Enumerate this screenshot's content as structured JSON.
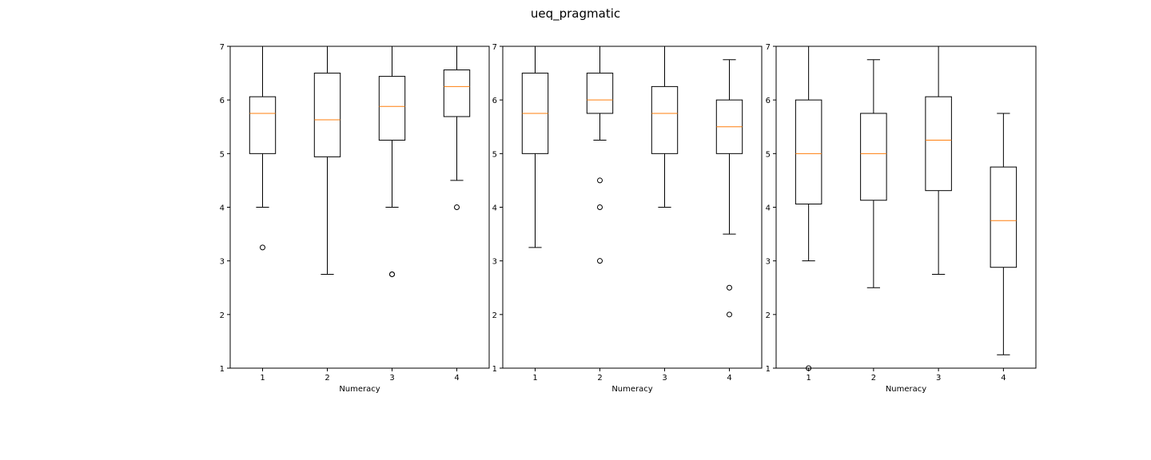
{
  "figure": {
    "title": "ueq_pragmatic"
  },
  "chart_data": [
    {
      "type": "box",
      "xlabel": "Numeracy",
      "ylim": [
        1,
        7
      ],
      "yticks": [
        1,
        2,
        3,
        4,
        5,
        6,
        7
      ],
      "categories": [
        "1",
        "2",
        "3",
        "4"
      ],
      "boxes": [
        {
          "whislo": 4.0,
          "q1": 5.0,
          "med": 5.75,
          "q3": 6.06,
          "whishi": 7.0,
          "fliers": [
            3.25
          ]
        },
        {
          "whislo": 2.75,
          "q1": 4.94,
          "med": 5.63,
          "q3": 6.5,
          "whishi": 7.0,
          "fliers": []
        },
        {
          "whislo": 4.0,
          "q1": 5.25,
          "med": 5.88,
          "q3": 6.44,
          "whishi": 7.0,
          "fliers": [
            2.75,
            2.75
          ]
        },
        {
          "whislo": 4.5,
          "q1": 5.69,
          "med": 6.25,
          "q3": 6.56,
          "whishi": 7.0,
          "fliers": [
            4.0
          ]
        }
      ]
    },
    {
      "type": "box",
      "xlabel": "Numeracy",
      "ylim": [
        1,
        7
      ],
      "yticks": [
        1,
        2,
        3,
        4,
        5,
        6,
        7
      ],
      "categories": [
        "1",
        "2",
        "3",
        "4"
      ],
      "boxes": [
        {
          "whislo": 3.25,
          "q1": 5.0,
          "med": 5.75,
          "q3": 6.5,
          "whishi": 7.0,
          "fliers": []
        },
        {
          "whislo": 5.25,
          "q1": 5.75,
          "med": 6.0,
          "q3": 6.5,
          "whishi": 7.0,
          "fliers": [
            4.5,
            4.0,
            3.0
          ]
        },
        {
          "whislo": 4.0,
          "q1": 5.0,
          "med": 5.75,
          "q3": 6.25,
          "whishi": 7.0,
          "fliers": []
        },
        {
          "whislo": 3.5,
          "q1": 5.0,
          "med": 5.5,
          "q3": 6.0,
          "whishi": 6.75,
          "fliers": [
            2.5,
            2.0
          ]
        }
      ]
    },
    {
      "type": "box",
      "xlabel": "Numeracy",
      "ylim": [
        1,
        7
      ],
      "yticks": [
        1,
        2,
        3,
        4,
        5,
        6,
        7
      ],
      "categories": [
        "1",
        "2",
        "3",
        "4"
      ],
      "boxes": [
        {
          "whislo": 3.0,
          "q1": 4.06,
          "med": 5.0,
          "q3": 6.0,
          "whishi": 7.0,
          "fliers": [
            1.0
          ]
        },
        {
          "whislo": 2.5,
          "q1": 4.13,
          "med": 5.0,
          "q3": 5.75,
          "whishi": 6.75,
          "fliers": []
        },
        {
          "whislo": 2.75,
          "q1": 4.31,
          "med": 5.25,
          "q3": 6.06,
          "whishi": 7.0,
          "fliers": []
        },
        {
          "whislo": 1.25,
          "q1": 2.88,
          "med": 3.75,
          "q3": 4.75,
          "whishi": 5.75,
          "fliers": []
        }
      ]
    }
  ],
  "colors": {
    "median": "#ff7f0e",
    "box": "#000000"
  }
}
